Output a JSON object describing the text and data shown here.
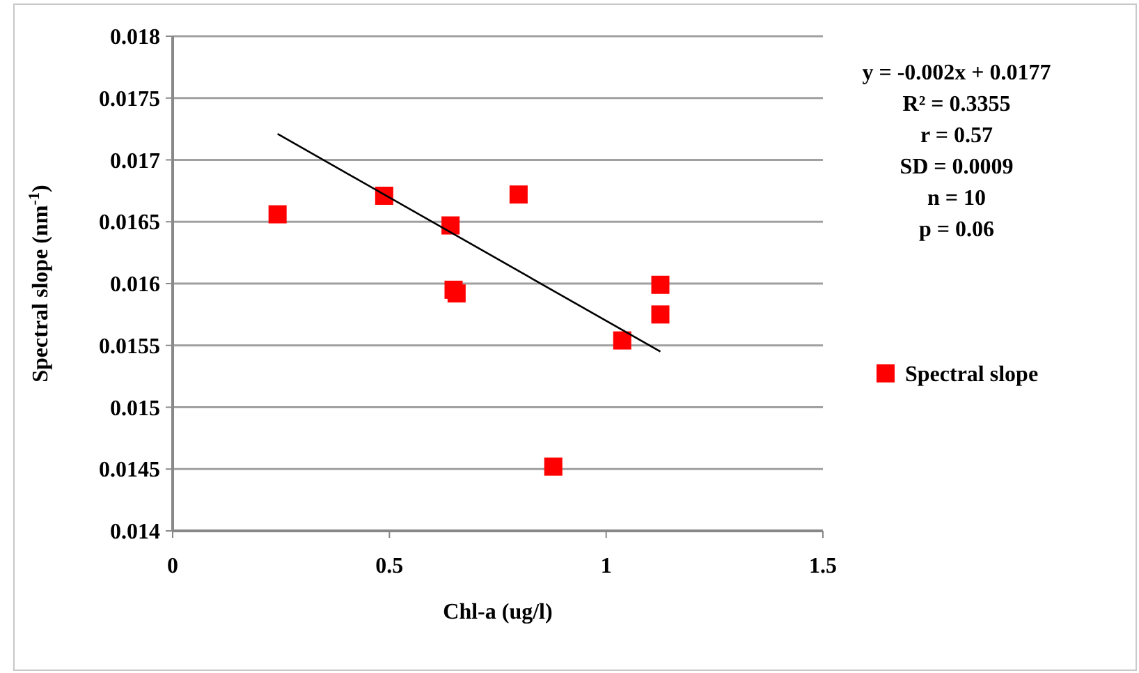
{
  "chart_data": {
    "type": "scatter",
    "xlabel": "Chl-a (ug/l)",
    "ylabel": "Spectral slope (nm$^{-1}$)",
    "xlim": [
      0,
      1.5
    ],
    "xticks": [
      0,
      0.5,
      1,
      1.5
    ],
    "ylim": [
      0.014,
      0.018
    ],
    "yticks": [
      0.014,
      0.0145,
      0.015,
      0.0155,
      0.016,
      0.0165,
      0.017,
      0.0175,
      0.018
    ],
    "grid": "y",
    "legend": "right",
    "marker": "square",
    "series": [
      {
        "name": "Spectral slope",
        "color": "#ff0000",
        "x": [
          0.242,
          0.488,
          0.641,
          0.648,
          0.655,
          0.798,
          0.878,
          1.037,
          1.125,
          1.125
        ],
        "values": [
          0.01656,
          0.01671,
          0.01647,
          0.01595,
          0.01592,
          0.01672,
          0.01452,
          0.01554,
          0.01599,
          0.01575
        ]
      },
      {
        "type": "line",
        "color": "#000000",
        "marker": "none",
        "x": [
          0.242,
          1.125
        ],
        "values": [
          0.01721,
          0.01545
        ]
      }
    ],
    "annotations": [
      "y = -0.002x + 0.0177",
      "R² = 0.3355",
      "r = 0.57",
      "SD = 0.0009",
      "n = 10",
      "p = 0.06"
    ]
  }
}
